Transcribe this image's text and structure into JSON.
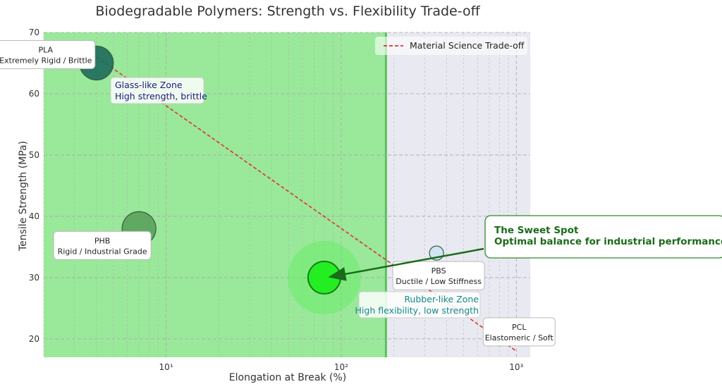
{
  "chart_data": {
    "type": "scatter",
    "title": "Biodegradable Polymers: Strength vs. Flexibility Trade-off",
    "xlabel": "Elongation at Break (%)",
    "ylabel": "Tensile Strength (MPa)",
    "xscale": "log",
    "xlim": [
      2.0,
      1200
    ],
    "ylim": [
      17,
      70
    ],
    "x_ticks": [
      {
        "value": 10,
        "label": "10¹"
      },
      {
        "value": 100,
        "label": "10²"
      },
      {
        "value": 1000,
        "label": "10³"
      }
    ],
    "y_ticks": [
      20,
      30,
      40,
      50,
      60,
      70
    ],
    "grid": true,
    "points": [
      {
        "name": "PLA",
        "desc": "Extremely Rigid / Brittle",
        "x": 4,
        "y": 65,
        "size": "large",
        "color": "#1e6b5c"
      },
      {
        "name": "PHB",
        "desc": "Rigid / Industrial Grade",
        "x": 7,
        "y": 38,
        "size": "large",
        "color": "#5aa35a"
      },
      {
        "name": "PBS",
        "desc": "Ductile / Low Stiffness",
        "x": 350,
        "y": 34,
        "size": "small",
        "color": "#cde6f0"
      },
      {
        "name": "PCL",
        "desc": "Elastomeric / Soft",
        "x": 800,
        "y": 20,
        "size": "small",
        "color": "#2f8a7a"
      },
      {
        "name": "",
        "desc": "",
        "x": 80,
        "y": 30,
        "size": "highlight",
        "color": "#22ee22"
      }
    ],
    "trend": {
      "name": "Material Science Trade-off",
      "x": [
        4,
        1000
      ],
      "y": [
        66,
        18
      ],
      "color": "#e03030"
    },
    "legend": {
      "position": "top-right",
      "entries": [
        "Material Science Trade-off"
      ]
    },
    "zones": [
      {
        "label_line1": "Glass-like Zone",
        "label_line2": "High strength, brittle",
        "color": "#1a1a80"
      },
      {
        "label_line1": "Rubber-like Zone",
        "label_line2": "High flexibility, low strength",
        "color": "#138a8a"
      }
    ],
    "zone_boundary_x": 180,
    "callout": {
      "line1": "The Sweet Spot",
      "line2": "Optimal balance for industrial performance",
      "color": "#1a6b1a"
    },
    "colors": {
      "glass_fill": "#9ae89a",
      "rubber_fill": "#e9e9f1",
      "grid": "#a8a8b0"
    }
  }
}
